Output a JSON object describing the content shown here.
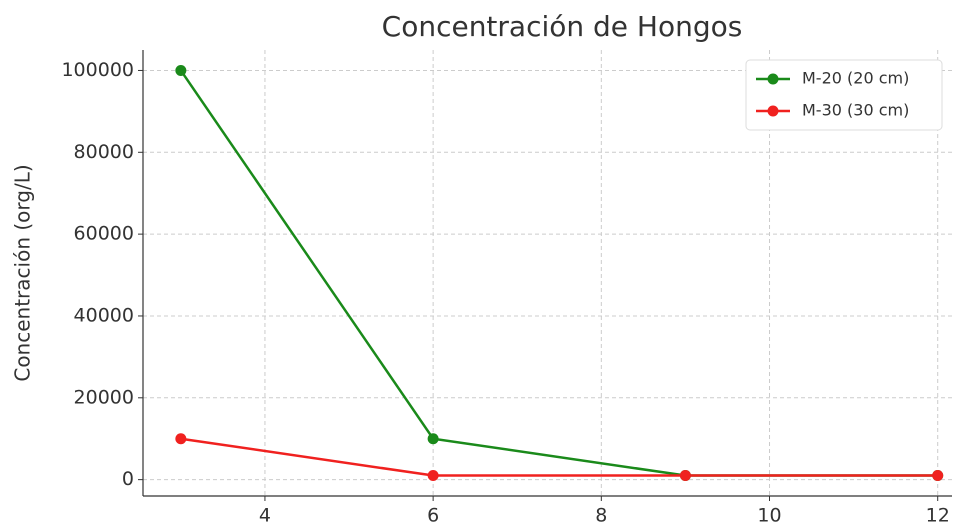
{
  "chart_data": {
    "type": "line",
    "title": "Concentración de Hongos",
    "y_label": "Concentración (org/L)",
    "x": [
      3,
      6,
      9,
      12
    ],
    "series": [
      {
        "name": "M-20 (20 cm)",
        "color": "#1a8a1a",
        "values": [
          100000,
          10000,
          1000,
          1000
        ]
      },
      {
        "name": "M-30 (30 cm)",
        "color": "#f0211f",
        "values": [
          10000,
          1000,
          1000,
          1000
        ]
      }
    ],
    "xlim": [
      2.55,
      12.17
    ],
    "ylim": [
      -4000,
      105000
    ],
    "xticks": [
      4,
      6,
      8,
      10,
      12
    ],
    "yticks": [
      0,
      20000,
      40000,
      60000,
      80000,
      100000
    ],
    "grid": true,
    "legend": "upper right"
  }
}
